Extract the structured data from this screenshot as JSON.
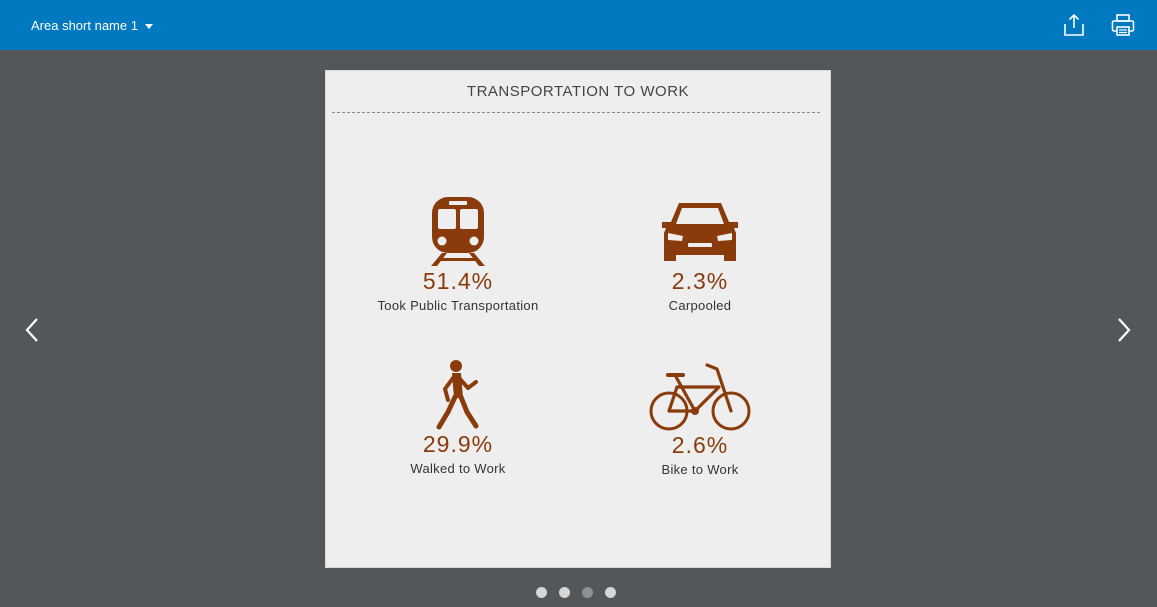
{
  "header": {
    "area_select_label": "Area short name 1",
    "share_icon": "share-export-icon",
    "print_icon": "printer-icon"
  },
  "card": {
    "title": "TRANSPORTATION TO WORK",
    "stats": [
      {
        "icon": "train-icon",
        "value": "51.4%",
        "label": "Took Public Transportation"
      },
      {
        "icon": "car-icon",
        "value": "2.3%",
        "label": "Carpooled"
      },
      {
        "icon": "walking-person-icon",
        "value": "29.9%",
        "label": "Walked to Work"
      },
      {
        "icon": "bicycle-icon",
        "value": "2.6%",
        "label": "Bike to Work"
      }
    ]
  },
  "navigation": {
    "prev_icon": "chevron-left-icon",
    "next_icon": "chevron-right-icon"
  },
  "pager": {
    "page_count": 4,
    "current_page": 3
  },
  "colors": {
    "header_bg": "#0079c1",
    "page_bg": "#54575a",
    "card_bg": "#eeeeee",
    "accent": "#8a3b0b"
  }
}
